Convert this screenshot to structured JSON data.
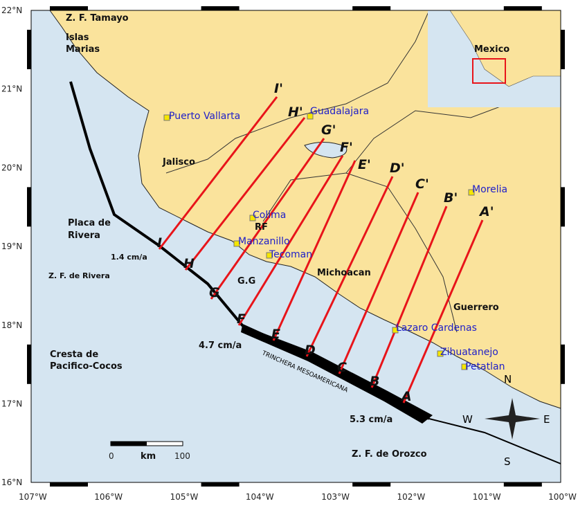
{
  "colors": {
    "land": "#fae39c",
    "ocean": "#d5e5f1",
    "profile": "#e8141a",
    "city": "#2020c8",
    "trench": "#000000"
  },
  "axes": {
    "lon_ticks": [
      "107°W",
      "106°W",
      "105°W",
      "104°W",
      "103°W",
      "102°W",
      "101°W",
      "100°W"
    ],
    "lat_ticks": [
      "22°N",
      "21°N",
      "20°N",
      "19°N",
      "18°N",
      "17°N",
      "16°N"
    ]
  },
  "cities": [
    "Puerto Vallarta",
    "Guadalajara",
    "Colima",
    "Manzanillo",
    "Tecoman",
    "Morelia",
    "Lazaro Cardenas",
    "Zihuatanejo",
    "Petatlan"
  ],
  "regions": [
    "Z. F. Tamayo",
    "Islas",
    "Marias",
    "Jalisco",
    "Placa de",
    "Rivera",
    "Z. F. de Rivera",
    "Cresta de",
    "Pacifico-Cocos",
    "Michoacan",
    "Guerrero",
    "RF",
    "G.G",
    "Z. F. de Orozco",
    "TRINCHERA MESOAMERICANA"
  ],
  "rates": [
    "1.4 cm/a",
    "4.7 cm/a",
    "5.3 cm/a"
  ],
  "profiles": {
    "start": [
      "A",
      "B",
      "C",
      "D",
      "E",
      "F",
      "G",
      "H",
      "I"
    ],
    "end": [
      "A'",
      "B'",
      "C'",
      "D'",
      "E'",
      "F'",
      "G'",
      "H'",
      "I'"
    ]
  },
  "inset": {
    "label": "Mexico"
  },
  "scale_bar": {
    "min": "0",
    "unit": "km",
    "max": "100"
  },
  "compass": {
    "n": "N",
    "s": "S",
    "e": "E",
    "w": "W"
  }
}
